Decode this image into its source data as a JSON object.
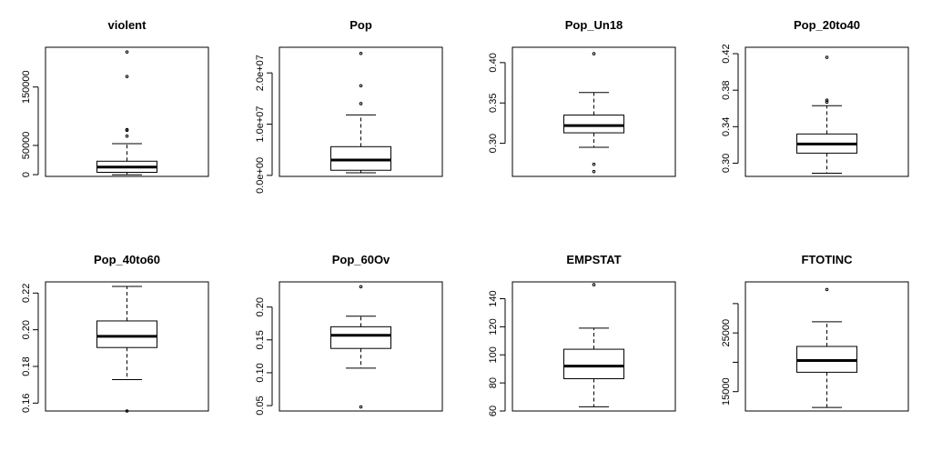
{
  "chart_data": [
    {
      "type": "boxplot",
      "title": "violent",
      "ylim": [
        -3000,
        218000
      ],
      "ticks": [
        0,
        50000,
        150000
      ],
      "tick_labels": [
        "0",
        "50000",
        "150000"
      ],
      "box": {
        "lower_whisker": 0,
        "q1": 4000,
        "median": 13000,
        "q3": 23000,
        "upper_whisker": 53000
      },
      "outliers": [
        66000,
        76000,
        77000,
        168000,
        210000
      ]
    },
    {
      "type": "boxplot",
      "title": "Pop",
      "ylim": [
        -200000,
        25000000
      ],
      "ticks": [
        0,
        10000000,
        20000000
      ],
      "tick_labels": [
        "0.0e+00",
        "1.0e+07",
        "2.0e+07"
      ],
      "box": {
        "lower_whisker": 500000,
        "q1": 1000000,
        "median": 3000000,
        "q3": 5600000,
        "upper_whisker": 11800000
      },
      "outliers": [
        14000000,
        17500000,
        23800000
      ]
    },
    {
      "type": "boxplot",
      "title": "Pop_Un18",
      "ylim": [
        0.259,
        0.419
      ],
      "ticks": [
        0.3,
        0.35,
        0.4
      ],
      "tick_labels": [
        "0.30",
        "0.35",
        "0.40"
      ],
      "box": {
        "lower_whisker": 0.295,
        "q1": 0.313,
        "median": 0.322,
        "q3": 0.335,
        "upper_whisker": 0.363
      },
      "outliers": [
        0.265,
        0.274,
        0.411
      ]
    },
    {
      "type": "boxplot",
      "title": "Pop_20to40",
      "ylim": [
        0.2855,
        0.427
      ],
      "ticks": [
        0.3,
        0.34,
        0.38,
        0.42
      ],
      "tick_labels": [
        "0.30",
        "0.34",
        "0.38",
        "0.42"
      ],
      "box": {
        "lower_whisker": 0.289,
        "q1": 0.311,
        "median": 0.321,
        "q3": 0.332,
        "upper_whisker": 0.363
      },
      "outliers": [
        0.367,
        0.369,
        0.416
      ]
    },
    {
      "type": "boxplot",
      "title": "Pop_40to60",
      "ylim": [
        0.1557,
        0.2261
      ],
      "ticks": [
        0.16,
        0.18,
        0.2,
        0.22
      ],
      "tick_labels": [
        "0.16",
        "0.18",
        "0.20",
        "0.22"
      ],
      "box": {
        "lower_whisker": 0.1728,
        "q1": 0.1903,
        "median": 0.1964,
        "q3": 0.2048,
        "upper_whisker": 0.2236
      },
      "outliers": [
        0.1557
      ]
    },
    {
      "type": "boxplot",
      "title": "Pop_60Ov",
      "ylim": [
        0.0418,
        0.2383
      ],
      "ticks": [
        0.05,
        0.1,
        0.15,
        0.2
      ],
      "tick_labels": [
        "0.05",
        "0.10",
        "0.15",
        "0.20"
      ],
      "box": {
        "lower_whisker": 0.107,
        "q1": 0.137,
        "median": 0.157,
        "q3": 0.17,
        "upper_whisker": 0.186
      },
      "outliers": [
        0.048,
        0.231
      ]
    },
    {
      "type": "boxplot",
      "title": "EMPSTAT",
      "ylim": [
        60,
        152
      ],
      "ticks": [
        60,
        80,
        100,
        120,
        140
      ],
      "tick_labels": [
        "60",
        "80",
        "100",
        "120",
        "140"
      ],
      "box": {
        "lower_whisker": 63,
        "q1": 83,
        "median": 92,
        "q3": 104,
        "upper_whisker": 119
      },
      "outliers": [
        150
      ]
    },
    {
      "type": "boxplot",
      "title": "FTOTINC",
      "ylim": [
        11700,
        33700
      ],
      "ticks": [
        15000,
        20000,
        25000,
        30000
      ],
      "tick_labels": [
        "15000",
        "",
        "25000",
        ""
      ],
      "box": {
        "lower_whisker": 12300,
        "q1": 18300,
        "median": 20300,
        "q3": 22700,
        "upper_whisker": 26900
      },
      "outliers": [
        32400
      ]
    }
  ]
}
